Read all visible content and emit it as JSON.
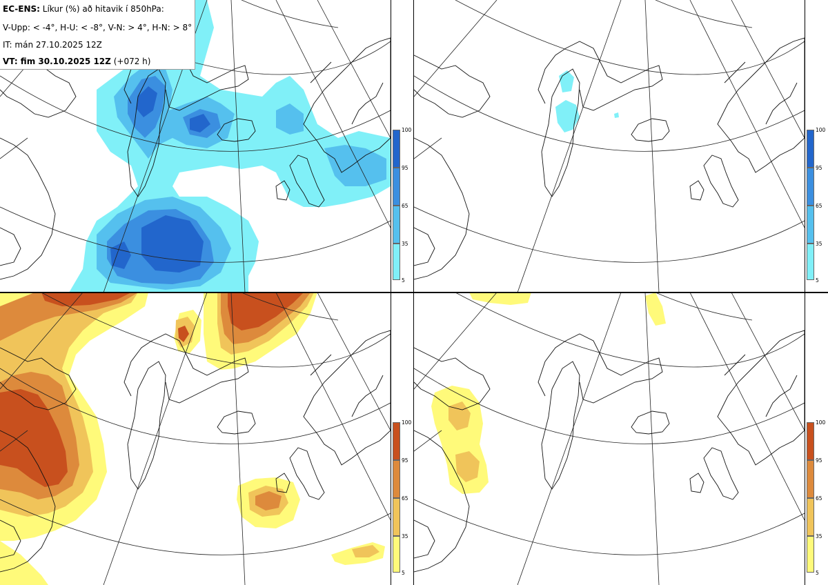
{
  "header": {
    "model": "EC-ENS:",
    "product": "Líkur (%) að hitavik í 850hPa:",
    "categories": "V-Upp: < -4°, H-U: < -8°, V-N: > 4°, H-N: > 8°",
    "init_time": "IT: mán 27.10.2025 12Z",
    "valid_label": "VT: fim 30.10.2025 12Z",
    "lead_time": "(+072 h)"
  },
  "panels": [
    {
      "name": "V-Upp",
      "position": "top-left",
      "palette": "cold"
    },
    {
      "name": "H-U",
      "position": "top-right",
      "palette": "cold"
    },
    {
      "name": "V-N",
      "position": "bottom-left",
      "palette": "warm"
    },
    {
      "name": "H-N",
      "position": "bottom-right",
      "palette": "warm"
    }
  ],
  "colorbars": {
    "cold": {
      "ticks": [
        "100",
        "95",
        "65",
        "35",
        "5"
      ],
      "colors": [
        "#2266cc",
        "#3b8fe0",
        "#55c0ee",
        "#80f0f8"
      ]
    },
    "warm": {
      "ticks": [
        "100",
        "95",
        "65",
        "35",
        "5"
      ],
      "colors": [
        "#c8501e",
        "#dd8a3c",
        "#f0c45a",
        "#fffa7a"
      ]
    }
  }
}
